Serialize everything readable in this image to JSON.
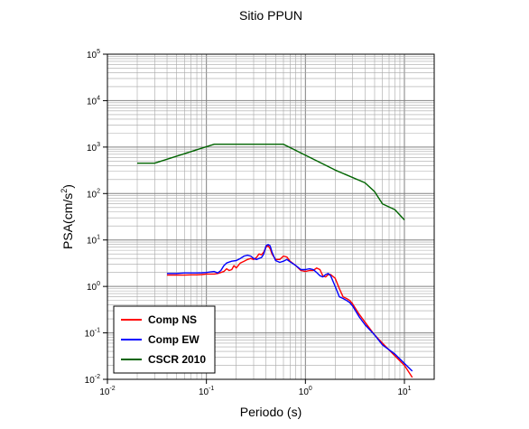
{
  "chart_data": {
    "type": "line",
    "title": "Sitio PPUN",
    "xlabel": "Periodo (s)",
    "ylabel": {
      "base": "PSA(cm/s",
      "sup": "2",
      "tail": ")"
    },
    "xscale": "log",
    "yscale": "log",
    "xlim": [
      0.01,
      20
    ],
    "ylim": [
      0.01,
      100000
    ],
    "grid": true,
    "legend_position": "bottom-left",
    "x_ticks": [
      {
        "base": "10",
        "exp": "-2",
        "value": 0.01
      },
      {
        "base": "10",
        "exp": "-1",
        "value": 0.1
      },
      {
        "base": "10",
        "exp": "0",
        "value": 1
      },
      {
        "base": "10",
        "exp": "1",
        "value": 10
      }
    ],
    "y_ticks": [
      {
        "base": "10",
        "exp": "-2",
        "value": 0.01
      },
      {
        "base": "10",
        "exp": "-1",
        "value": 0.1
      },
      {
        "base": "10",
        "exp": "0",
        "value": 1
      },
      {
        "base": "10",
        "exp": "1",
        "value": 10
      },
      {
        "base": "10",
        "exp": "2",
        "value": 100
      },
      {
        "base": "10",
        "exp": "3",
        "value": 1000
      },
      {
        "base": "10",
        "exp": "4",
        "value": 10000
      },
      {
        "base": "10",
        "exp": "5",
        "value": 100000
      }
    ],
    "series": [
      {
        "name": "Comp NS",
        "color": "#ff0000",
        "points": [
          [
            0.04,
            1.75
          ],
          [
            0.05,
            1.75
          ],
          [
            0.06,
            1.75
          ],
          [
            0.07,
            1.78
          ],
          [
            0.08,
            1.78
          ],
          [
            0.09,
            1.8
          ],
          [
            0.1,
            1.85
          ],
          [
            0.11,
            1.85
          ],
          [
            0.12,
            1.85
          ],
          [
            0.13,
            1.9
          ],
          [
            0.14,
            2.0
          ],
          [
            0.15,
            2.1
          ],
          [
            0.16,
            2.4
          ],
          [
            0.17,
            2.2
          ],
          [
            0.18,
            2.3
          ],
          [
            0.19,
            2.8
          ],
          [
            0.2,
            2.5
          ],
          [
            0.22,
            3.2
          ],
          [
            0.24,
            3.5
          ],
          [
            0.26,
            3.8
          ],
          [
            0.28,
            4.0
          ],
          [
            0.3,
            3.8
          ],
          [
            0.32,
            4.2
          ],
          [
            0.34,
            5.0
          ],
          [
            0.36,
            4.8
          ],
          [
            0.38,
            5.5
          ],
          [
            0.4,
            7.0
          ],
          [
            0.42,
            7.5
          ],
          [
            0.44,
            6.5
          ],
          [
            0.46,
            5.0
          ],
          [
            0.5,
            3.8
          ],
          [
            0.55,
            3.8
          ],
          [
            0.6,
            4.5
          ],
          [
            0.65,
            4.3
          ],
          [
            0.7,
            3.5
          ],
          [
            0.8,
            2.8
          ],
          [
            0.9,
            2.2
          ],
          [
            1.0,
            2.1
          ],
          [
            1.1,
            2.2
          ],
          [
            1.2,
            2.2
          ],
          [
            1.3,
            2.5
          ],
          [
            1.4,
            2.3
          ],
          [
            1.5,
            1.7
          ],
          [
            1.6,
            1.6
          ],
          [
            1.7,
            1.8
          ],
          [
            1.8,
            1.8
          ],
          [
            2.0,
            1.5
          ],
          [
            2.2,
            0.9
          ],
          [
            2.4,
            0.6
          ],
          [
            2.6,
            0.55
          ],
          [
            2.8,
            0.5
          ],
          [
            3.0,
            0.42
          ],
          [
            3.5,
            0.25
          ],
          [
            4.0,
            0.17
          ],
          [
            5.0,
            0.09
          ],
          [
            6.0,
            0.06
          ],
          [
            8.0,
            0.032
          ],
          [
            10.0,
            0.02
          ],
          [
            12.0,
            0.011
          ]
        ]
      },
      {
        "name": "Comp EW",
        "color": "#0000ff",
        "points": [
          [
            0.04,
            1.9
          ],
          [
            0.05,
            1.9
          ],
          [
            0.06,
            1.95
          ],
          [
            0.07,
            1.95
          ],
          [
            0.08,
            1.95
          ],
          [
            0.09,
            1.97
          ],
          [
            0.1,
            2.0
          ],
          [
            0.11,
            2.05
          ],
          [
            0.12,
            2.1
          ],
          [
            0.13,
            1.95
          ],
          [
            0.14,
            2.2
          ],
          [
            0.15,
            2.8
          ],
          [
            0.16,
            3.2
          ],
          [
            0.18,
            3.5
          ],
          [
            0.2,
            3.6
          ],
          [
            0.22,
            4.0
          ],
          [
            0.24,
            4.5
          ],
          [
            0.26,
            4.7
          ],
          [
            0.28,
            4.5
          ],
          [
            0.3,
            4.0
          ],
          [
            0.32,
            3.8
          ],
          [
            0.34,
            4.0
          ],
          [
            0.36,
            4.2
          ],
          [
            0.38,
            5.0
          ],
          [
            0.4,
            7.5
          ],
          [
            0.42,
            8.0
          ],
          [
            0.44,
            7.5
          ],
          [
            0.46,
            5.5
          ],
          [
            0.5,
            3.6
          ],
          [
            0.55,
            3.3
          ],
          [
            0.6,
            3.5
          ],
          [
            0.65,
            3.8
          ],
          [
            0.7,
            3.4
          ],
          [
            0.8,
            2.8
          ],
          [
            0.9,
            2.3
          ],
          [
            1.0,
            2.3
          ],
          [
            1.1,
            2.4
          ],
          [
            1.2,
            2.3
          ],
          [
            1.3,
            2.0
          ],
          [
            1.4,
            1.7
          ],
          [
            1.5,
            1.6
          ],
          [
            1.6,
            1.8
          ],
          [
            1.7,
            1.9
          ],
          [
            1.8,
            1.7
          ],
          [
            2.0,
            1.0
          ],
          [
            2.2,
            0.6
          ],
          [
            2.4,
            0.55
          ],
          [
            2.6,
            0.5
          ],
          [
            2.8,
            0.45
          ],
          [
            3.0,
            0.38
          ],
          [
            3.5,
            0.22
          ],
          [
            4.0,
            0.15
          ],
          [
            5.0,
            0.09
          ],
          [
            6.0,
            0.055
          ],
          [
            8.0,
            0.035
          ],
          [
            10.0,
            0.022
          ],
          [
            12.0,
            0.015
          ]
        ]
      },
      {
        "name": "CSCR 2010",
        "color": "#006400",
        "points": [
          [
            0.02,
            450
          ],
          [
            0.03,
            450
          ],
          [
            0.12,
            1150
          ],
          [
            0.6,
            1150
          ],
          [
            2.0,
            320
          ],
          [
            4.0,
            170
          ],
          [
            5.0,
            110
          ],
          [
            6.0,
            60
          ],
          [
            8.0,
            45
          ],
          [
            10.0,
            27
          ]
        ]
      }
    ]
  }
}
